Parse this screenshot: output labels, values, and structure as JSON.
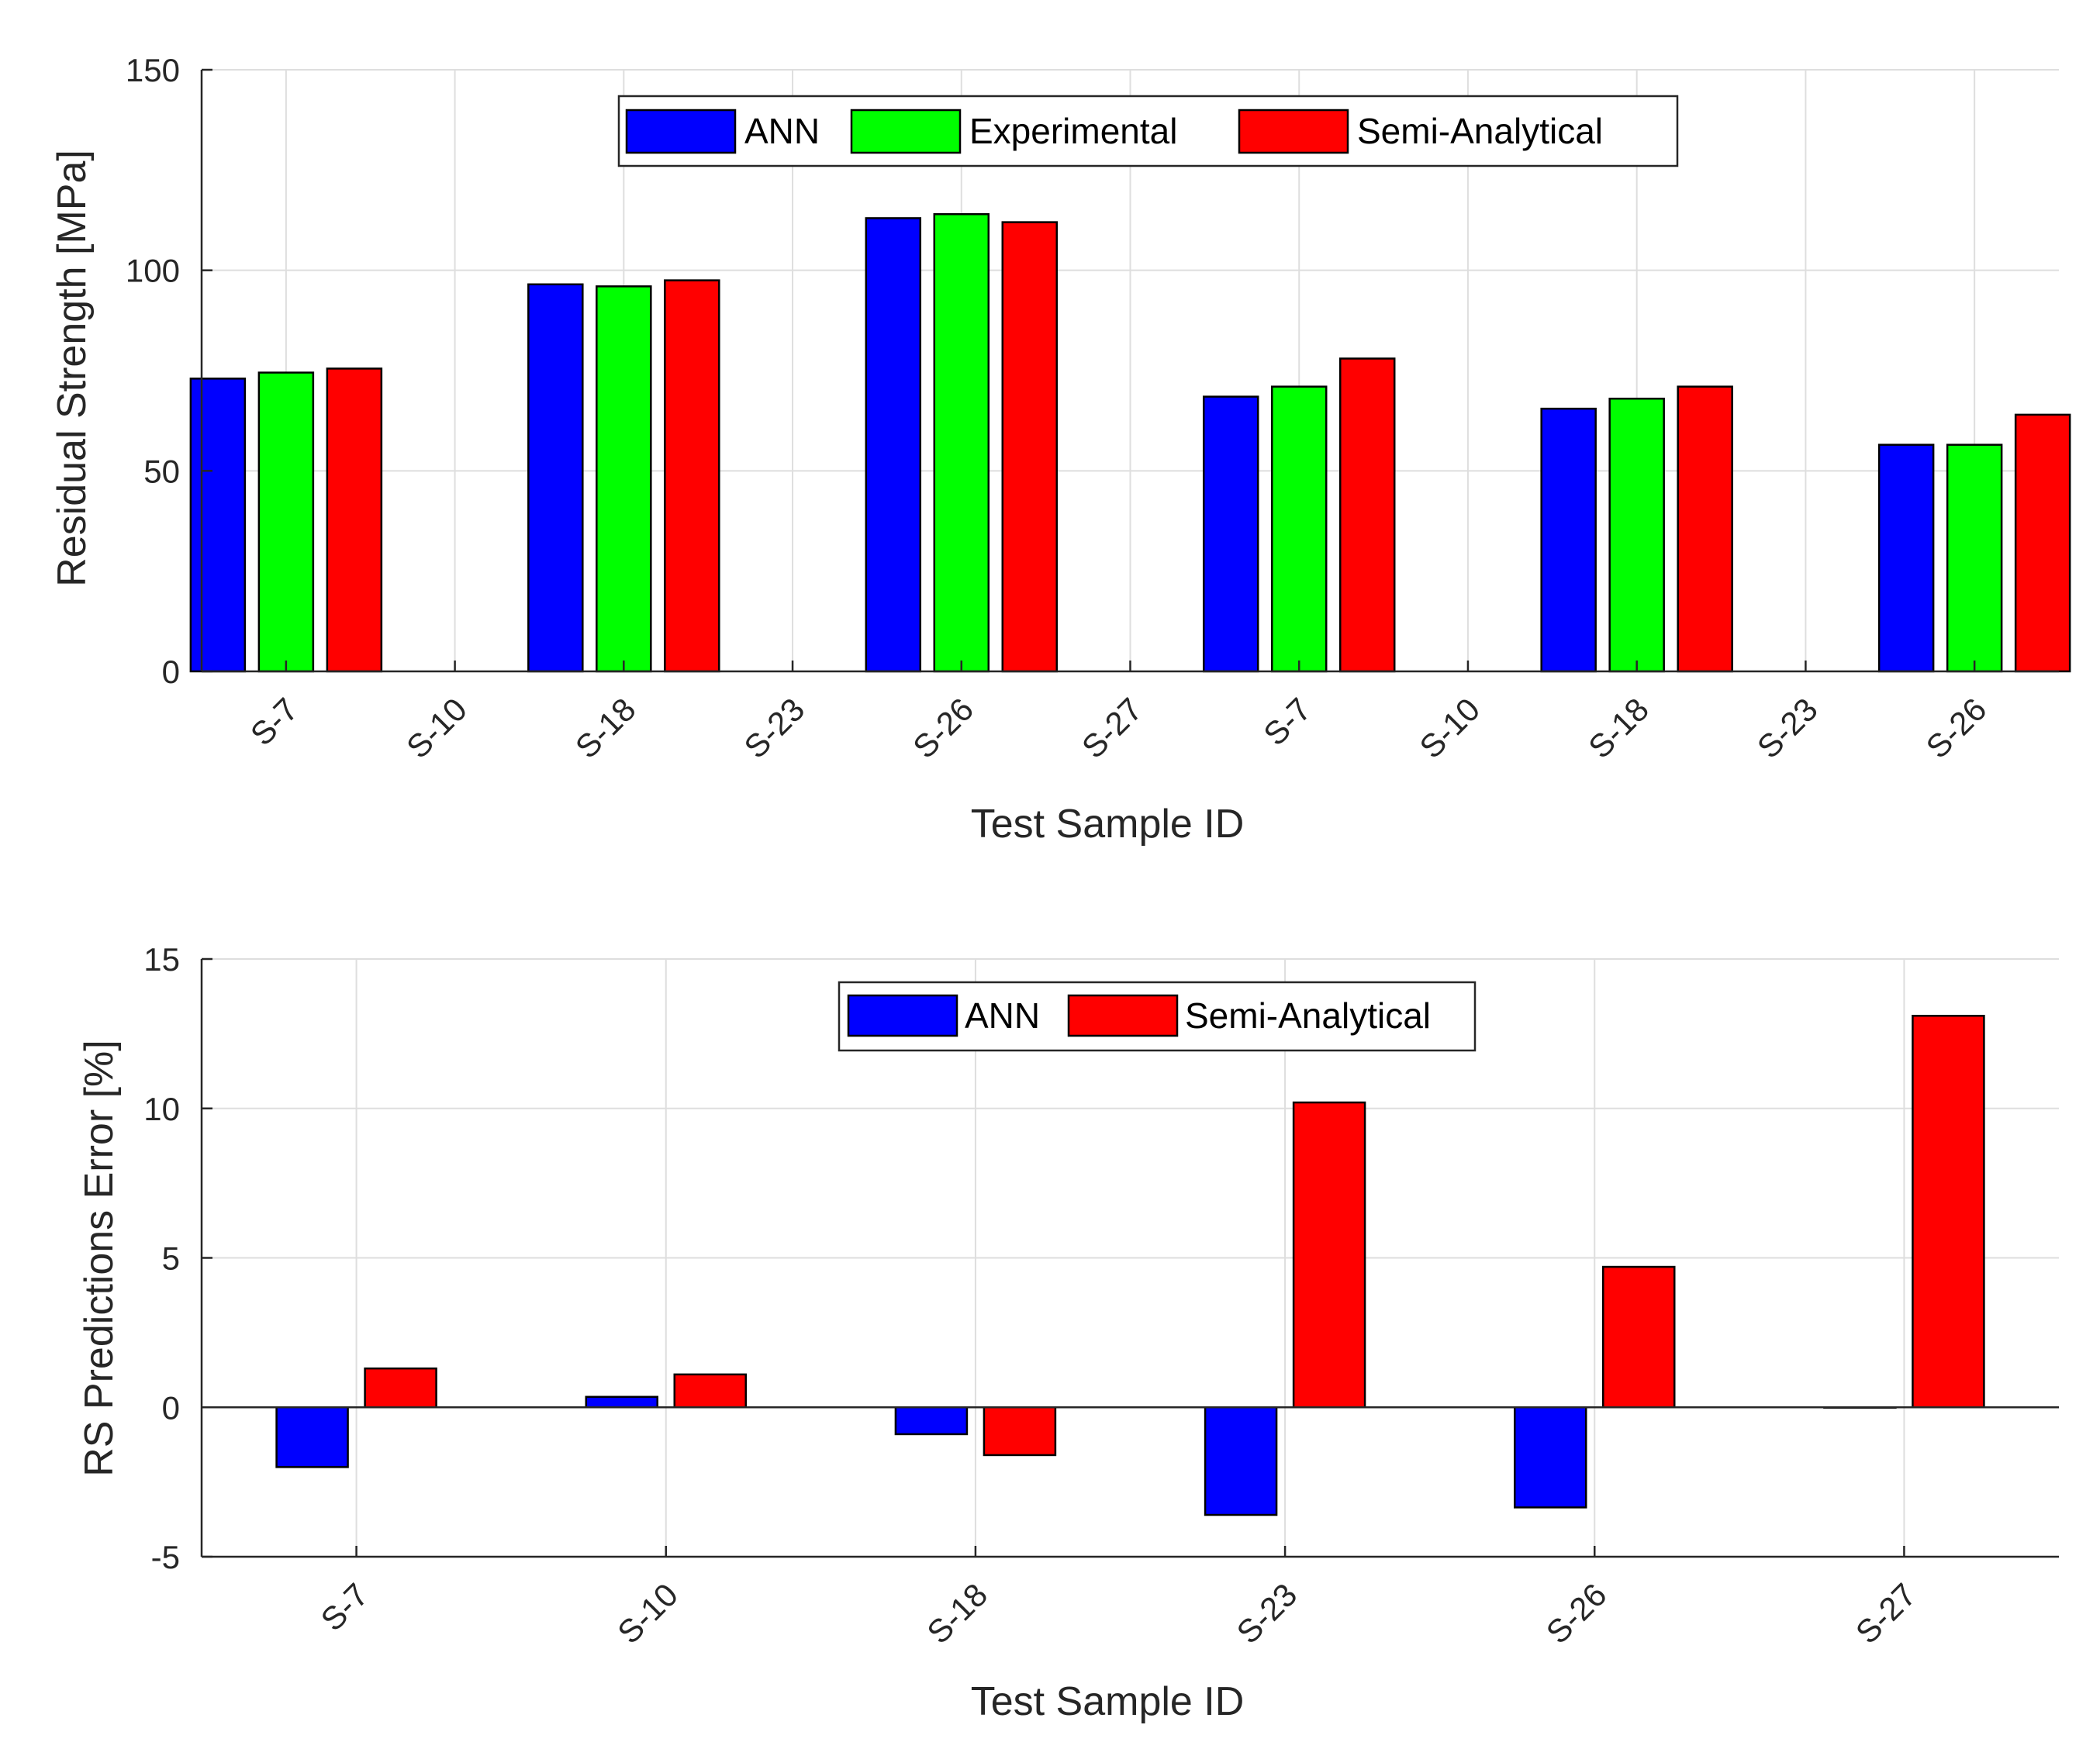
{
  "chart_data": [
    {
      "type": "bar",
      "title": "",
      "xlabel": "Test Sample ID",
      "ylabel": "Residual Strength [MPa]",
      "ylim": [
        0,
        150
      ],
      "yticks": [
        0,
        50,
        100,
        150
      ],
      "tick_labels": [
        "S-7",
        "S-10",
        "S-18",
        "S-23",
        "S-26",
        "S-27",
        "S-7",
        "S-10",
        "S-18",
        "S-23",
        "S-26"
      ],
      "legend_position": "top-center",
      "groups": [
        "S-7",
        "S-18",
        "S-26",
        "S-7",
        "S-18",
        "S-26"
      ],
      "series": [
        {
          "name": "ANN",
          "color": "#0000ff",
          "values": [
            73,
            96.5,
            113,
            68.5,
            65.5,
            56.5
          ]
        },
        {
          "name": "Experimental",
          "color": "#00ff00",
          "values": [
            74.5,
            96,
            114,
            71,
            68,
            56.5
          ]
        },
        {
          "name": "Semi-Analytical",
          "color": "#ff0000",
          "values": [
            75.5,
            97.5,
            112,
            78,
            71,
            64
          ]
        }
      ]
    },
    {
      "type": "bar",
      "title": "",
      "xlabel": "Test Sample ID",
      "ylabel": "RS Predictions Error [%]",
      "ylim": [
        -5,
        15
      ],
      "yticks": [
        -5,
        0,
        5,
        10,
        15
      ],
      "categories": [
        "S-7",
        "S-10",
        "S-18",
        "S-23",
        "S-26",
        "S-27"
      ],
      "legend_position": "top-center",
      "series": [
        {
          "name": "ANN",
          "color": "#0000ff",
          "values": [
            -2.0,
            0.35,
            -0.9,
            -3.6,
            -3.35,
            0.0
          ]
        },
        {
          "name": "Semi-Analytical",
          "color": "#ff0000",
          "values": [
            1.3,
            1.1,
            -1.6,
            10.2,
            4.7,
            13.1
          ]
        }
      ]
    }
  ]
}
